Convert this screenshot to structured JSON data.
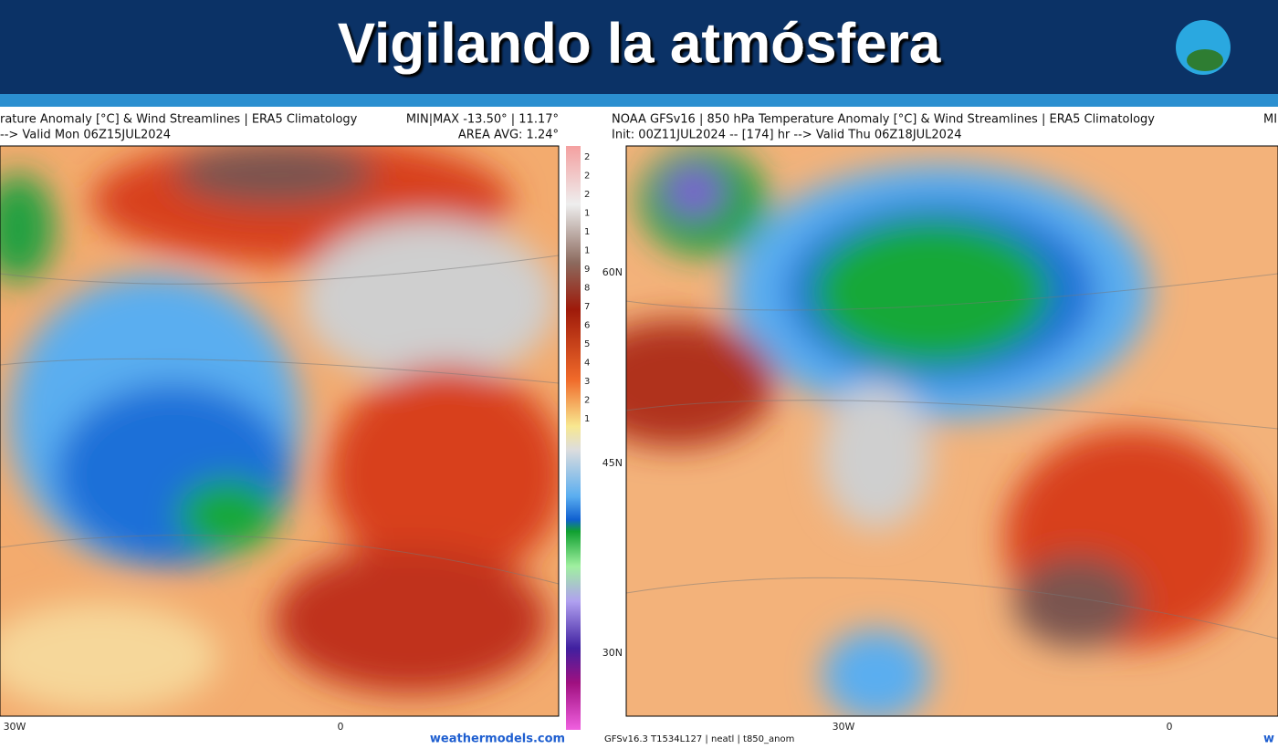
{
  "header": {
    "title": "Vigilando la atmósfera"
  },
  "left_panel": {
    "title": "rature Anomaly [°C] & Wind Streamlines | ERA5 Climatology",
    "stats": "MIN|MAX -13.50° | 11.17°",
    "valid": "--> Valid Mon 06Z15JUL2024",
    "area_avg": "AREA AVG: 1.24°",
    "lon_labels": [
      "30W",
      "0"
    ],
    "credit": "weathermodels.com",
    "colorbar_labels": [
      "2",
      "2",
      "2",
      "1",
      "1",
      "1",
      "9",
      "8",
      "7",
      "6",
      "5",
      "4",
      "3",
      "2",
      "1"
    ]
  },
  "right_panel": {
    "title": "NOAA GFSv16 | 850 hPa Temperature Anomaly [°C] & Wind Streamlines | ERA5 Climatology",
    "stats": "MI",
    "init": "Init: 00Z11JUL2024 -- [174] hr --> Valid Thu 06Z18JUL2024",
    "lat_labels": [
      "60N",
      "45N",
      "30N"
    ],
    "lon_labels": [
      "30W",
      "0"
    ],
    "model_info": "GFSv16.3 T1534L127 | neatl | t850_anom",
    "credit": "w"
  }
}
